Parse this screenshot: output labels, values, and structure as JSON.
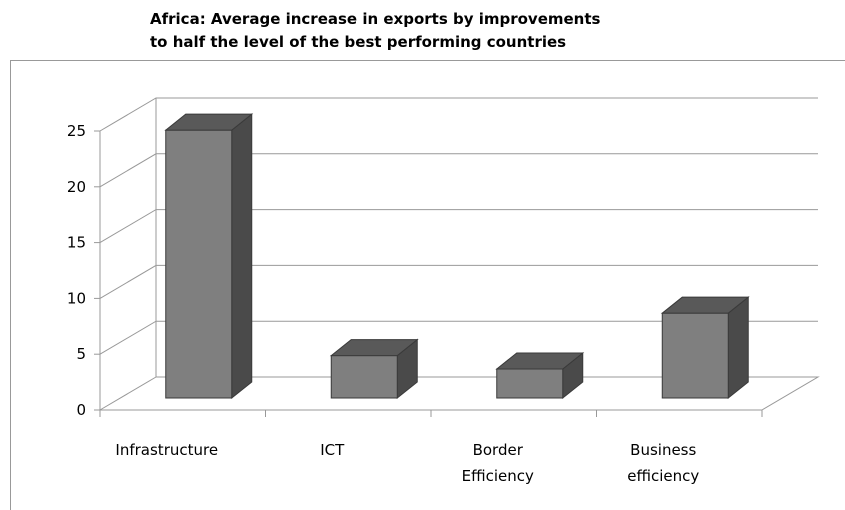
{
  "chart_data": {
    "type": "bar",
    "title_lines": [
      "Africa:  Average increase in exports by improvements",
      "to half the level of the  best performing countries"
    ],
    "categories": [
      [
        "Infrastructure"
      ],
      [
        "ICT"
      ],
      [
        "Border",
        "Efficiency"
      ],
      [
        "Business",
        "efficiency"
      ]
    ],
    "values": [
      24,
      3.8,
      2.6,
      7.6
    ],
    "ylim": [
      0,
      25
    ],
    "yticks": [
      0,
      5,
      10,
      15,
      20,
      25
    ],
    "grid": true,
    "legend": "none",
    "colors": {
      "bar_front": "#7f7f7f",
      "bar_top": "#595959",
      "bar_side": "#4a4a4a",
      "bar_outline": "#3a3a3a",
      "grid": "#999999",
      "axis": "#999999"
    }
  }
}
